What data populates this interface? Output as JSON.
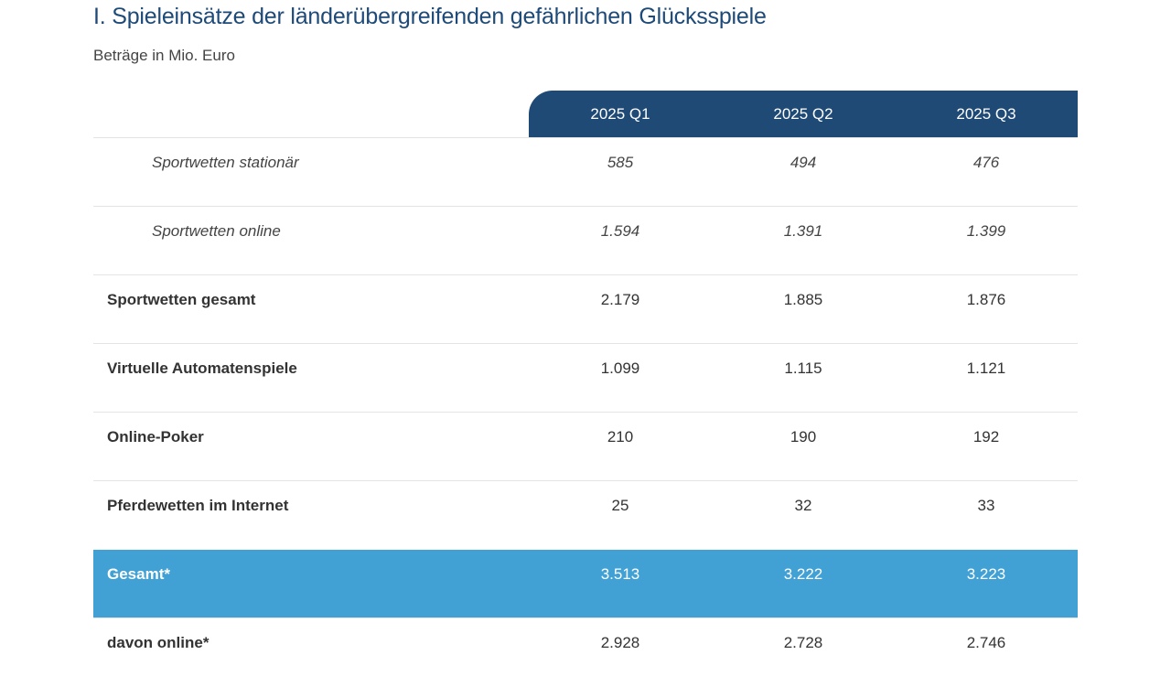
{
  "title": "I. Spieleinsätze der länderübergreifenden gefährlichen Glücksspiele",
  "subtitle": "Beträge in Mio. Euro",
  "colors": {
    "header": "#1f4a75",
    "total_row": "#41a0d4",
    "title": "#1d4a78"
  },
  "table": {
    "columns": [
      "2025 Q1",
      "2025 Q2",
      "2025 Q3"
    ],
    "rows": [
      {
        "label": "Sportwetten stationär",
        "values": [
          "585",
          "494",
          "476"
        ],
        "style": "sub"
      },
      {
        "label": "Sportwetten online",
        "values": [
          "1.594",
          "1.391",
          "1.399"
        ],
        "style": "sub"
      },
      {
        "label": "Sportwetten gesamt",
        "values": [
          "2.179",
          "1.885",
          "1.876"
        ],
        "style": "main"
      },
      {
        "label": "Virtuelle Automatenspiele",
        "values": [
          "1.099",
          "1.115",
          "1.121"
        ],
        "style": "main"
      },
      {
        "label": "Online-Poker",
        "values": [
          "210",
          "190",
          "192"
        ],
        "style": "main"
      },
      {
        "label": "Pferdewetten im Internet",
        "values": [
          "25",
          "32",
          "33"
        ],
        "style": "main"
      },
      {
        "label": "Gesamt*",
        "values": [
          "3.513",
          "3.222",
          "3.223"
        ],
        "style": "total"
      },
      {
        "label": "davon online*",
        "values": [
          "2.928",
          "2.728",
          "2.746"
        ],
        "style": "main"
      }
    ]
  }
}
